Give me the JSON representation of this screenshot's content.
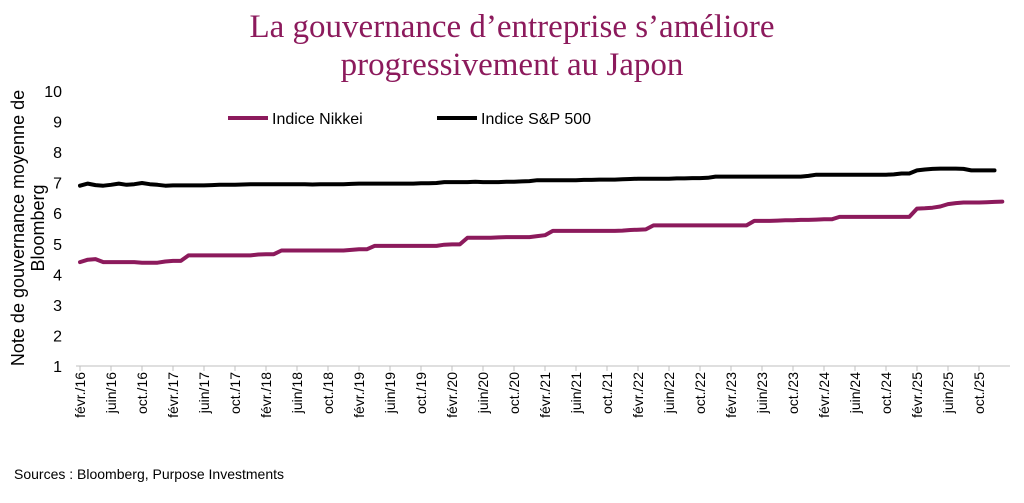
{
  "chart_data": {
    "type": "line",
    "title": "La gouvernance d’entreprise s’améliore progressivement au Japon",
    "title_lines": [
      "La gouvernance d’entreprise s’améliore",
      "progressivement au Japon"
    ],
    "ylabel": "Note de gouvernance moyenne de Bloomberg",
    "ylabel_lines": [
      "Note de gouvernance moyenne de",
      "Bloomberg"
    ],
    "xlabel": "",
    "ylim": [
      1,
      10
    ],
    "yticks": [
      1,
      2,
      3,
      4,
      5,
      6,
      7,
      8,
      9,
      10
    ],
    "x_start": "2016-02",
    "x_frequency": "monthly",
    "xtick_labels": [
      "févr./16",
      "juin/16",
      "oct./16",
      "févr./17",
      "juin/17",
      "oct./17",
      "févr./18",
      "juin/18",
      "oct./18",
      "févr./19",
      "juin/19",
      "oct./19",
      "févr./20",
      "juin/20",
      "oct./20",
      "févr./21",
      "juin/21",
      "oct./21",
      "févr./22",
      "juin/22",
      "oct./22",
      "févr./23",
      "juin/23",
      "oct./23",
      "févr./24",
      "juin/24",
      "oct./24",
      "févr./25",
      "juin/25",
      "oct./25"
    ],
    "grid": false,
    "legend_position": "top",
    "series": [
      {
        "name": "Indice Nikkei",
        "color": "#8c1a5c",
        "values": [
          4.4,
          4.48,
          4.5,
          4.4,
          4.4,
          4.4,
          4.4,
          4.4,
          4.38,
          4.38,
          4.38,
          4.42,
          4.44,
          4.44,
          4.62,
          4.62,
          4.62,
          4.62,
          4.62,
          4.62,
          4.62,
          4.62,
          4.62,
          4.65,
          4.66,
          4.66,
          4.78,
          4.78,
          4.78,
          4.78,
          4.78,
          4.78,
          4.78,
          4.78,
          4.78,
          4.8,
          4.82,
          4.82,
          4.93,
          4.93,
          4.93,
          4.93,
          4.93,
          4.93,
          4.93,
          4.93,
          4.93,
          4.97,
          4.98,
          4.98,
          5.2,
          5.2,
          5.2,
          5.2,
          5.21,
          5.22,
          5.22,
          5.22,
          5.22,
          5.25,
          5.28,
          5.42,
          5.42,
          5.42,
          5.42,
          5.42,
          5.42,
          5.42,
          5.42,
          5.42,
          5.43,
          5.45,
          5.46,
          5.47,
          5.6,
          5.6,
          5.6,
          5.6,
          5.6,
          5.6,
          5.6,
          5.6,
          5.6,
          5.6,
          5.6,
          5.6,
          5.6,
          5.75,
          5.75,
          5.75,
          5.76,
          5.77,
          5.77,
          5.78,
          5.78,
          5.79,
          5.8,
          5.8,
          5.88,
          5.88,
          5.88,
          5.88,
          5.88,
          5.88,
          5.88,
          5.88,
          5.88,
          5.88,
          6.15,
          6.16,
          6.18,
          6.22,
          6.3,
          6.33,
          6.35,
          6.35,
          6.35,
          6.36,
          6.37,
          6.38
        ]
      },
      {
        "name": "Indice S&P 500",
        "color": "#000000",
        "values": [
          6.9,
          6.97,
          6.92,
          6.9,
          6.93,
          6.97,
          6.93,
          6.95,
          6.99,
          6.95,
          6.93,
          6.9,
          6.91,
          6.91,
          6.91,
          6.91,
          6.91,
          6.92,
          6.93,
          6.93,
          6.93,
          6.94,
          6.95,
          6.95,
          6.95,
          6.95,
          6.95,
          6.95,
          6.95,
          6.95,
          6.94,
          6.95,
          6.95,
          6.95,
          6.95,
          6.96,
          6.97,
          6.97,
          6.97,
          6.97,
          6.97,
          6.97,
          6.97,
          6.97,
          6.98,
          6.98,
          6.99,
          7.02,
          7.02,
          7.02,
          7.02,
          7.03,
          7.02,
          7.02,
          7.02,
          7.03,
          7.03,
          7.04,
          7.05,
          7.08,
          7.08,
          7.08,
          7.08,
          7.08,
          7.08,
          7.09,
          7.09,
          7.1,
          7.1,
          7.1,
          7.11,
          7.12,
          7.13,
          7.13,
          7.13,
          7.13,
          7.13,
          7.14,
          7.14,
          7.15,
          7.15,
          7.16,
          7.2,
          7.2,
          7.2,
          7.2,
          7.2,
          7.2,
          7.2,
          7.2,
          7.2,
          7.2,
          7.2,
          7.2,
          7.22,
          7.26,
          7.26,
          7.26,
          7.26,
          7.26,
          7.26,
          7.26,
          7.26,
          7.26,
          7.26,
          7.27,
          7.3,
          7.3,
          7.4,
          7.43,
          7.45,
          7.46,
          7.46,
          7.46,
          7.45,
          7.4,
          7.4,
          7.4,
          7.4
        ]
      }
    ]
  },
  "source": "Sources : Bloomberg, Purpose Investments"
}
